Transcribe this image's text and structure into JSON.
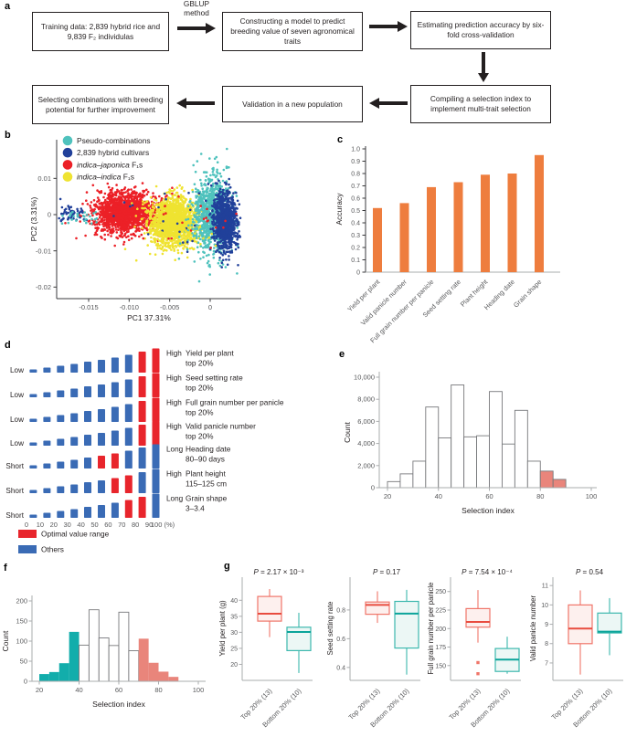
{
  "figure": {
    "panel_labels": {
      "a": "a",
      "b": "b",
      "c": "c",
      "d": "d",
      "e": "e",
      "f": "f",
      "g": "g"
    }
  },
  "flowchart": {
    "arrow_label_line1": "GBLUP",
    "arrow_label_line2": "method",
    "boxes": [
      "Training data: 2,839 hybrid rice and 9,839 F₂ individulas",
      "Constructing a model to predict breeding value of seven agronomical traits",
      "Estimating prediction accuracy by six-fold cross-validation",
      "Compiling a selection index to implement multi-trait selection",
      "Validation in a new population",
      "Selecting combinations with breeding potential for further improvement"
    ]
  },
  "chart_data": [
    {
      "id": "b",
      "type": "scatter",
      "xlabel": "PC1 37.31%",
      "ylabel": "PC2 (3.31%)",
      "xlim": [
        -0.019,
        0.0037
      ],
      "ylim": [
        -0.0232,
        0.0205
      ],
      "xticks": [
        -0.015,
        -0.01,
        -0.005,
        0
      ],
      "xtick_labels": [
        "-0.015",
        "-0.010",
        "-0.005",
        "0"
      ],
      "yticks": [
        0.01,
        0,
        -0.01,
        -0.02
      ],
      "ytick_labels": [
        "0.01",
        "0",
        "-0.01",
        "-0.02"
      ],
      "legend": [
        {
          "italic_part": "",
          "plain_part": "Pseudo-combinations",
          "color": "#4fc2bd"
        },
        {
          "italic_part": "",
          "plain_part": "2,839 hybrid cultivars",
          "color": "#21409a"
        },
        {
          "italic_part": "indica–japonica",
          "plain_part": " F₁s",
          "color": "#ec2027"
        },
        {
          "italic_part": "indica–indica",
          "plain_part": " F₁s",
          "color": "#efe331"
        }
      ],
      "clusters": [
        {
          "color": "#ec2027",
          "n": 1600,
          "cx": -0.0105,
          "cy": 0.0006,
          "sx": 0.0019,
          "sy": 0.0028
        },
        {
          "color": "#efe331",
          "n": 1600,
          "cx": -0.0046,
          "cy": -0.002,
          "sx": 0.0015,
          "sy": 0.0033
        },
        {
          "color": "#4fc2bd",
          "n": 900,
          "cx": 0.0002,
          "cy": -0.0002,
          "sx": 0.0013,
          "sy": 0.0055
        },
        {
          "color": "#21409a",
          "n": 1000,
          "cx": 0.0019,
          "cy": -0.0018,
          "sx": 0.00075,
          "sy": 0.0042
        },
        {
          "color": "#21409a",
          "n": 45,
          "cx": -0.0167,
          "cy": 0.0001,
          "sx": 0.0012,
          "sy": 0.0013
        },
        {
          "color": "#4fc2bd",
          "n": 30,
          "cx": -0.0164,
          "cy": -0.0006,
          "sx": 0.001,
          "sy": 0.0012
        },
        {
          "color": "#ec2027",
          "n": 50,
          "cx": -0.006,
          "cy": -0.001,
          "sx": 0.005,
          "sy": 0.0045
        },
        {
          "color": "#21409a",
          "n": 25,
          "cx": -0.004,
          "cy": -0.003,
          "sx": 0.004,
          "sy": 0.005
        },
        {
          "color": "#efe331",
          "n": 20,
          "cx": -0.004,
          "cy": -0.007,
          "sx": 0.003,
          "sy": 0.003
        }
      ]
    },
    {
      "id": "c",
      "type": "bar",
      "ylabel": "Accuracy",
      "categories": [
        "Yield per plant",
        "Valid panicle number",
        "Full grain number per panicle",
        "Seed setting rate",
        "Plant height",
        "Heading date",
        "Grain shape"
      ],
      "values": [
        0.52,
        0.56,
        0.69,
        0.73,
        0.79,
        0.8,
        0.95
      ],
      "ylim": [
        0,
        1
      ],
      "yticks": [
        0,
        0.1,
        0.2,
        0.3,
        0.4,
        0.5,
        0.6,
        0.7,
        0.8,
        0.9,
        1
      ],
      "ytick_labels": [
        "0",
        "0.1",
        "0.2",
        "0.3",
        "0.4",
        "0.5",
        "0.6",
        "0.7",
        "0.8",
        "0.9",
        "1.0"
      ],
      "bar_color": "#ee7d3e"
    },
    {
      "id": "d",
      "type": "decile-diagram",
      "xtick_labels": [
        "0",
        "10",
        "20",
        "30",
        "40",
        "50",
        "60",
        "70",
        "80",
        "90",
        "100 (%)"
      ],
      "colors": {
        "optimal": "#e8252c",
        "others": "#3a6bb5"
      },
      "rows": [
        {
          "left": "Low",
          "right": "High",
          "trait": "Yield per plant",
          "range": "top 20%",
          "red": [
            8,
            9
          ]
        },
        {
          "left": "Low",
          "right": "High",
          "trait": "Seed setting rate",
          "range": "top 20%",
          "red": [
            8,
            9
          ]
        },
        {
          "left": "Low",
          "right": "High",
          "trait": "Full grain number per panicle",
          "range": "top 20%",
          "red": [
            8,
            9
          ]
        },
        {
          "left": "Low",
          "right": "High",
          "trait": "Valid panicle number",
          "range": "top 20%",
          "red": [
            8,
            9
          ]
        },
        {
          "left": "Short",
          "right": "Long",
          "trait": "Heading date",
          "range": "80–90 days",
          "red": [
            5,
            6
          ]
        },
        {
          "left": "Short",
          "right": "High",
          "trait": "Plant height",
          "range": "115–125 cm",
          "red": [
            6,
            7
          ]
        },
        {
          "left": "Short",
          "right": "Long",
          "trait": "Grain shape",
          "range": "3–3.4",
          "red": [
            7,
            8
          ]
        }
      ],
      "legend": [
        {
          "label": "Optimal value range",
          "color": "#e8252c"
        },
        {
          "label": "Others",
          "color": "#3a6bb5"
        }
      ]
    },
    {
      "id": "e",
      "type": "bar",
      "subtype": "histogram",
      "xlabel": "Selection index",
      "ylabel": "Count",
      "bin_start": 20,
      "bin_width": 5,
      "values": [
        550,
        1250,
        2400,
        7300,
        4500,
        9300,
        4600,
        4700,
        8700,
        3950,
        7000,
        2400,
        1500,
        750
      ],
      "highlight_from": 12,
      "highlight_color": "#e9857b",
      "xticks": [
        20,
        40,
        60,
        80,
        100
      ],
      "yticks": [
        0,
        2000,
        4000,
        6000,
        8000,
        10000
      ],
      "ytick_labels": [
        "0",
        "2,000",
        "4,000",
        "6,000",
        "8,000",
        "10,000"
      ],
      "ylim": [
        0,
        10000
      ]
    },
    {
      "id": "f",
      "type": "bar",
      "subtype": "histogram",
      "xlabel": "Selection index",
      "ylabel": "Count",
      "bin_start": 20,
      "bin_width": 5,
      "values": [
        18,
        23,
        45,
        123,
        90,
        178,
        108,
        89,
        172,
        76,
        106,
        46,
        24,
        11
      ],
      "bin_colors": [
        "#12adab",
        "#12adab",
        "#12adab",
        "#12adab",
        null,
        null,
        null,
        null,
        null,
        null,
        "#e9857b",
        "#e9857b",
        "#e9857b",
        "#e9857b"
      ],
      "xticks": [
        20,
        40,
        60,
        80,
        100
      ],
      "yticks": [
        0,
        50,
        100,
        150,
        200
      ],
      "ytick_labels": [
        "0",
        "50",
        "100",
        "150",
        "200"
      ],
      "ylim": [
        0,
        200
      ]
    },
    {
      "id": "g",
      "type": "box",
      "group_styles": [
        {
          "stroke": "#f0766a",
          "median": "#e84c3f",
          "fill": "#fdf0ee"
        },
        {
          "stroke": "#3db8ae",
          "median": "#0ba49a",
          "fill": "#ecf7f5"
        }
      ],
      "plots": [
        {
          "p_value": "2.17 × 10⁻³",
          "ylabel": "Yield per plant (g)",
          "ylim": [
            15,
            45.5
          ],
          "yticks": [
            20,
            25,
            30,
            35,
            40
          ],
          "groups": [
            {
              "label": "Top 20% (13)",
              "whislo": 28.5,
              "q1": 33.5,
              "med": 35.8,
              "q3": 41.2,
              "whishi": 43.5,
              "outliers": []
            },
            {
              "label": "Bottom 20% (10)",
              "whislo": 17.3,
              "q1": 24.3,
              "med": 30.1,
              "q3": 31.6,
              "whishi": 36.1,
              "outliers": []
            }
          ]
        },
        {
          "p_value": "0.17",
          "ylabel": "Seed setting rate",
          "ylim": [
            0.31,
            0.99
          ],
          "yticks": [
            0.4,
            0.6,
            0.8
          ],
          "groups": [
            {
              "label": "Top 20% (13)",
              "whislo": 0.71,
              "q1": 0.77,
              "med": 0.835,
              "q3": 0.855,
              "whishi": 0.93,
              "outliers": []
            },
            {
              "label": "Bottom 20% (10)",
              "whislo": 0.35,
              "q1": 0.535,
              "med": 0.775,
              "q3": 0.86,
              "whishi": 0.94,
              "outliers": []
            }
          ]
        },
        {
          "p_value": "7.54 × 10⁻⁴",
          "ylabel": "Full grain number per panicle",
          "ylim": [
            130,
            262
          ],
          "yticks": [
            150,
            175,
            200,
            225,
            250
          ],
          "groups": [
            {
              "label": "Top 20% (13)",
              "whislo": 181,
              "q1": 202,
              "med": 209,
              "q3": 227,
              "whishi": 252,
              "outliers": [
                154,
                139
              ]
            },
            {
              "label": "Bottom 20% (10)",
              "whislo": 139,
              "q1": 142,
              "med": 158,
              "q3": 173,
              "whishi": 189,
              "outliers": []
            }
          ]
        },
        {
          "p_value": "0.54",
          "ylabel": "Valid panicle number",
          "ylim": [
            6.1,
            11.15
          ],
          "yticks": [
            7,
            8,
            9,
            10,
            11
          ],
          "groups": [
            {
              "label": "Top 20% (13)",
              "whislo": 6.4,
              "q1": 8,
              "med": 8.78,
              "q3": 10,
              "whishi": 10.75,
              "outliers": []
            },
            {
              "label": "Bottom 20% (10)",
              "whislo": 7.4,
              "q1": 8.55,
              "med": 8.62,
              "q3": 9.58,
              "whishi": 10.35,
              "outliers": []
            }
          ]
        }
      ]
    }
  ]
}
